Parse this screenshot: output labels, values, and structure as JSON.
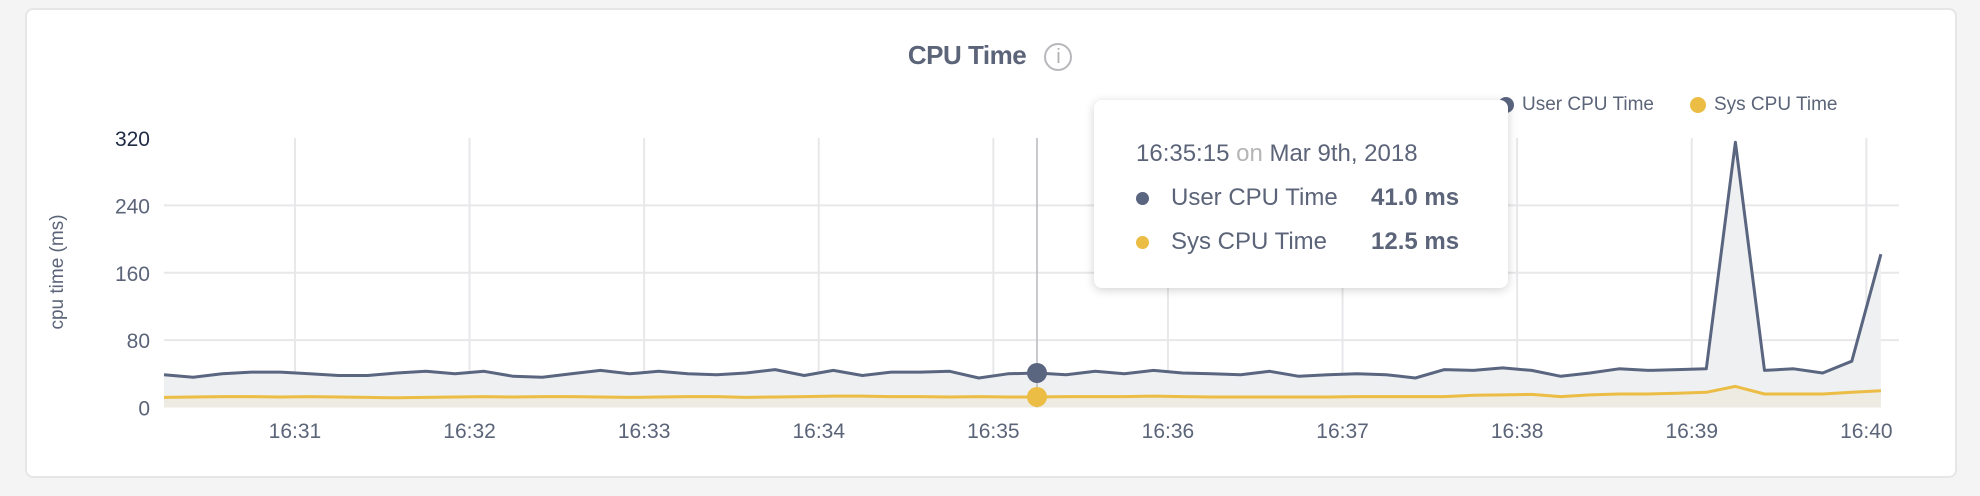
{
  "title": "CPU Time",
  "info_icon": "info-circle-icon",
  "colors": {
    "user": "#5a6580",
    "sys": "#ecbd45",
    "user_fill": "#eff0f2",
    "sys_fill": "#eeebe3",
    "grid": "#e8e8ea"
  },
  "legend": [
    {
      "label": "User CPU Time",
      "color": "#5a6580"
    },
    {
      "label": "Sys CPU Time",
      "color": "#ecbd45"
    }
  ],
  "tooltip": {
    "time": "16:35:15",
    "on": "on",
    "date": "Mar 9th, 2018",
    "rows": [
      {
        "label": "User CPU Time",
        "value": "41.0 ms",
        "color": "#5a6580"
      },
      {
        "label": "Sys CPU Time",
        "value": "12.5 ms",
        "color": "#ecbd45"
      }
    ]
  },
  "chart_data": {
    "type": "area",
    "title": "CPU Time",
    "xlabel": "",
    "ylabel": "cpu time (ms)",
    "ylim": [
      0,
      320
    ],
    "yticks": [
      "0",
      "80",
      "160",
      "240",
      "320"
    ],
    "xticks": [
      "16:31",
      "16:32",
      "16:33",
      "16:34",
      "16:35",
      "16:36",
      "16:37",
      "16:38",
      "16:39",
      "16:40"
    ],
    "x_start": "16:30:15",
    "x_step_seconds": 10,
    "grid": true,
    "legend_position": "top-right",
    "hover_index": 30,
    "series": [
      {
        "name": "User CPU Time",
        "values": [
          39,
          36,
          40,
          42,
          42,
          40,
          38,
          38,
          41,
          43,
          40,
          43,
          37,
          36,
          40,
          44,
          40,
          43,
          40,
          39,
          41,
          45,
          38,
          44,
          38,
          42,
          42,
          43,
          35,
          40,
          41,
          39,
          43,
          40,
          44,
          41,
          40,
          39,
          43,
          37,
          39,
          40,
          39,
          35,
          45,
          44,
          47,
          44,
          37,
          41,
          46,
          44,
          45,
          46,
          315,
          44,
          46,
          41,
          55,
          182
        ]
      },
      {
        "name": "Sys CPU Time",
        "values": [
          12,
          12.5,
          13,
          13,
          12.5,
          13,
          12.5,
          12,
          11.5,
          12,
          12.5,
          13,
          12.5,
          13,
          13,
          12.5,
          12,
          12.5,
          13,
          13,
          12,
          12.5,
          13,
          13.5,
          13.5,
          13,
          13,
          12.5,
          13,
          12.5,
          12.5,
          13,
          13,
          13,
          13.5,
          13,
          12.5,
          12.5,
          12.5,
          12.5,
          12.5,
          13,
          13,
          13,
          13,
          14.5,
          15,
          15.5,
          13,
          15,
          16,
          16,
          17,
          18,
          25,
          16,
          16,
          16,
          18,
          20
        ]
      }
    ]
  }
}
